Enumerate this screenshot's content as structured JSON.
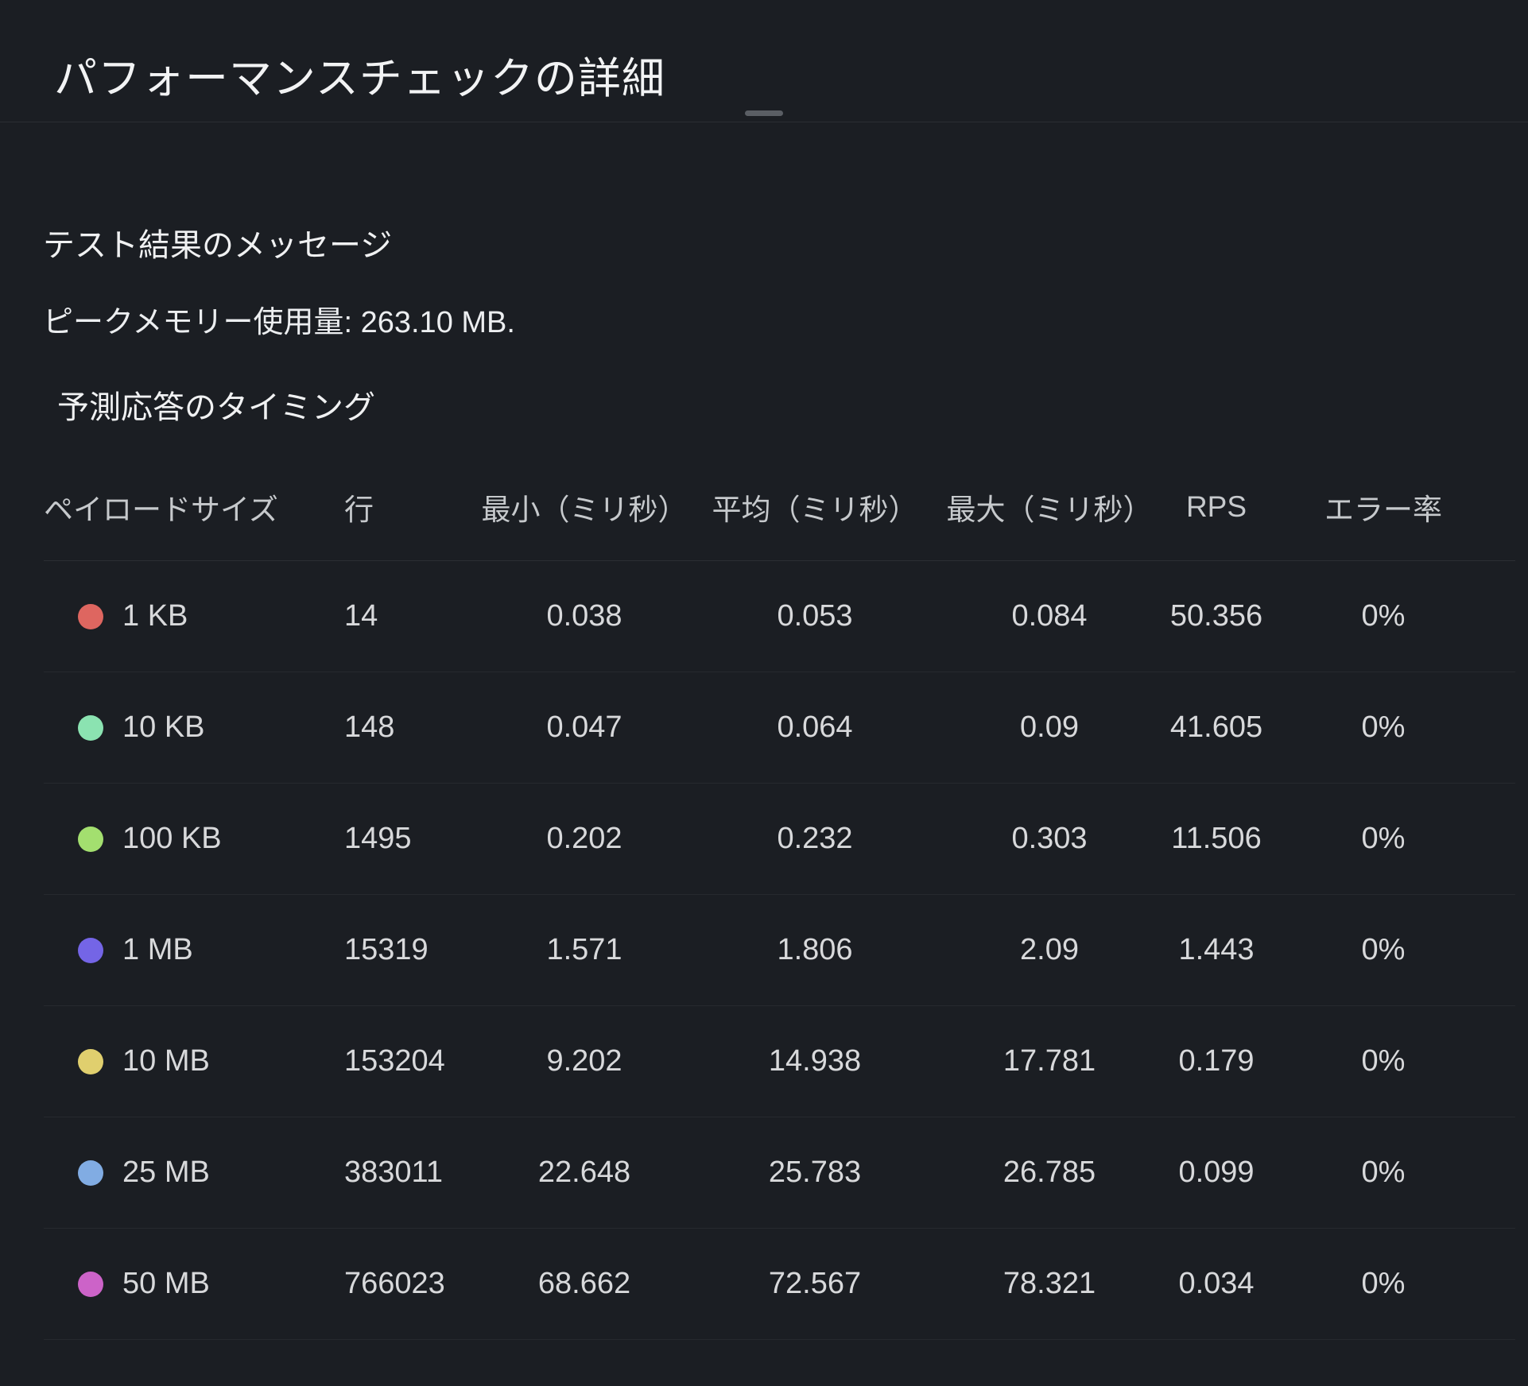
{
  "page": {
    "title": "パフォーマンスチェックの詳細",
    "section_messages_title": "テスト結果のメッセージ",
    "peak_memory_text": "ピークメモリー使用量: 263.10 MB.",
    "section_timing_title": "予測応答のタイミング"
  },
  "colors": {
    "background": "#1b1e23",
    "divider": "#2b2e33",
    "header_text": "#c6c9cc",
    "cell_text": "#d8d9db"
  },
  "table": {
    "columns": [
      "ペイロードサイズ",
      "行",
      "最小（ミリ秒）",
      "平均（ミリ秒）",
      "最大（ミリ秒）",
      "RPS",
      "エラー率"
    ],
    "rows": [
      {
        "payload": "1 KB",
        "dot_color": "#DE6660",
        "rows": "14",
        "min": "0.038",
        "avg": "0.053",
        "max": "0.084",
        "rps": "50.356",
        "error": "0%"
      },
      {
        "payload": "10 KB",
        "dot_color": "#8BE3B1",
        "rows": "148",
        "min": "0.047",
        "avg": "0.064",
        "max": "0.09",
        "rps": "41.605",
        "error": "0%"
      },
      {
        "payload": "100 KB",
        "dot_color": "#A3DF6F",
        "rows": "1495",
        "min": "0.202",
        "avg": "0.232",
        "max": "0.303",
        "rps": "11.506",
        "error": "0%"
      },
      {
        "payload": "1 MB",
        "dot_color": "#7465E6",
        "rows": "15319",
        "min": "1.571",
        "avg": "1.806",
        "max": "2.09",
        "rps": "1.443",
        "error": "0%"
      },
      {
        "payload": "10 MB",
        "dot_color": "#E0CF6E",
        "rows": "153204",
        "min": "9.202",
        "avg": "14.938",
        "max": "17.781",
        "rps": "0.179",
        "error": "0%"
      },
      {
        "payload": "25 MB",
        "dot_color": "#81ACE3",
        "rows": "383011",
        "min": "22.648",
        "avg": "25.783",
        "max": "26.785",
        "rps": "0.099",
        "error": "0%"
      },
      {
        "payload": "50 MB",
        "dot_color": "#CC63C8",
        "rows": "766023",
        "min": "68.662",
        "avg": "72.567",
        "max": "78.321",
        "rps": "0.034",
        "error": "0%"
      }
    ]
  }
}
